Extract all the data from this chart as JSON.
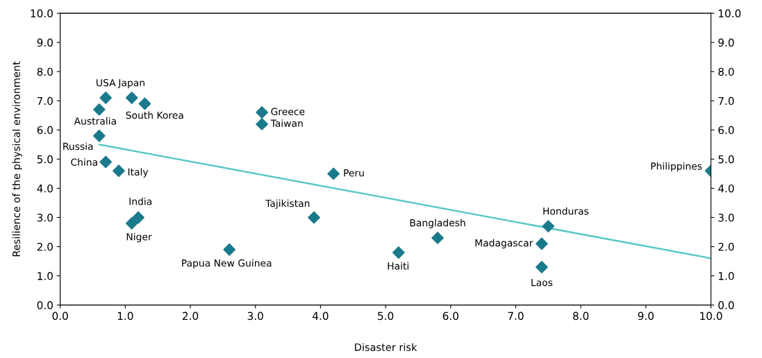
{
  "chart_data": {
    "type": "scatter",
    "xlabel": "Disaster risk",
    "ylabel": "Resilience of the physical environment",
    "xlim": [
      0,
      10
    ],
    "ylim": [
      0,
      10
    ],
    "y2lim": [
      0,
      10
    ],
    "xticks": [
      {
        "value": 0,
        "label": "0.0"
      },
      {
        "value": 1,
        "label": "1.0"
      },
      {
        "value": 2,
        "label": "2.0"
      },
      {
        "value": 3,
        "label": "3.0"
      },
      {
        "value": 4,
        "label": "4.0"
      },
      {
        "value": 5,
        "label": "5.0"
      },
      {
        "value": 6,
        "label": "6.0"
      },
      {
        "value": 7,
        "label": "7.0"
      },
      {
        "value": 8,
        "label": "8.0"
      },
      {
        "value": 9,
        "label": "9.0"
      },
      {
        "value": 10,
        "label": "10.0"
      }
    ],
    "yticks": [
      {
        "value": 0,
        "label": "0.0"
      },
      {
        "value": 1,
        "label": "1.0"
      },
      {
        "value": 2,
        "label": "2.0"
      },
      {
        "value": 3,
        "label": "3.0"
      },
      {
        "value": 4,
        "label": "4.0"
      },
      {
        "value": 5,
        "label": "5.0"
      },
      {
        "value": 6,
        "label": "6.0"
      },
      {
        "value": 7,
        "label": "7.0"
      },
      {
        "value": 8,
        "label": "8.0"
      },
      {
        "value": 9,
        "label": "9.0"
      },
      {
        "value": 10,
        "label": "10.0"
      }
    ],
    "y2ticks": [
      {
        "value": 0,
        "label": "0.0"
      },
      {
        "value": 1,
        "label": "1.0"
      },
      {
        "value": 2,
        "label": "2.0"
      },
      {
        "value": 3,
        "label": "3.0"
      },
      {
        "value": 4,
        "label": "4.0"
      },
      {
        "value": 5,
        "label": "5.0"
      },
      {
        "value": 6,
        "label": "6.0"
      },
      {
        "value": 7,
        "label": "7.0"
      },
      {
        "value": 8,
        "label": "8.0"
      },
      {
        "value": 9,
        "label": "9.0"
      },
      {
        "value": 10,
        "label": "10.0"
      }
    ],
    "grid": false,
    "series": [
      {
        "marker": "diamond",
        "color": "#1a7a8c",
        "x": [
          0.7,
          0.6,
          0.6,
          0.7,
          0.9,
          1.1,
          1.3,
          1.2,
          1.1,
          2.6,
          3.1,
          3.1,
          4.2,
          3.9,
          5.2,
          5.8,
          7.5,
          7.4,
          7.4,
          10.0
        ],
        "values": [
          7.1,
          6.7,
          5.8,
          4.9,
          4.6,
          7.1,
          6.9,
          3.0,
          2.8,
          1.9,
          6.6,
          6.2,
          4.5,
          3.0,
          1.8,
          2.3,
          2.7,
          2.1,
          1.3,
          4.6
        ]
      },
      {
        "type": "line",
        "marker": "none",
        "color": "#5bc8c8",
        "x": [
          0.6,
          10.0
        ],
        "values": [
          5.5,
          1.6
        ]
      }
    ],
    "annotations": [
      {
        "text": "USA",
        "x": 0.7,
        "y": 7.1
      },
      {
        "text": "Australia",
        "x": 0.6,
        "y": 6.7
      },
      {
        "text": "Russia",
        "x": 0.6,
        "y": 5.8
      },
      {
        "text": "China",
        "x": 0.7,
        "y": 4.9
      },
      {
        "text": "Italy",
        "x": 0.9,
        "y": 4.6
      },
      {
        "text": "Japan",
        "x": 1.1,
        "y": 7.1
      },
      {
        "text": "South Korea",
        "x": 1.3,
        "y": 6.9
      },
      {
        "text": "India",
        "x": 1.2,
        "y": 3.0
      },
      {
        "text": "Niger",
        "x": 1.1,
        "y": 2.8
      },
      {
        "text": "Papua New Guinea",
        "x": 2.6,
        "y": 1.9
      },
      {
        "text": "Greece",
        "x": 3.1,
        "y": 6.6
      },
      {
        "text": "Taiwan",
        "x": 3.1,
        "y": 6.2
      },
      {
        "text": "Peru",
        "x": 4.2,
        "y": 4.5
      },
      {
        "text": "Tajikistan",
        "x": 3.9,
        "y": 3.0
      },
      {
        "text": "Haiti",
        "x": 5.2,
        "y": 1.8
      },
      {
        "text": "Bangladesh",
        "x": 5.8,
        "y": 2.3
      },
      {
        "text": "Honduras",
        "x": 7.5,
        "y": 2.7
      },
      {
        "text": "Madagascar",
        "x": 7.4,
        "y": 2.1
      },
      {
        "text": "Laos",
        "x": 7.4,
        "y": 1.3
      },
      {
        "text": "Philippines",
        "x": 10.0,
        "y": 4.6
      }
    ]
  }
}
